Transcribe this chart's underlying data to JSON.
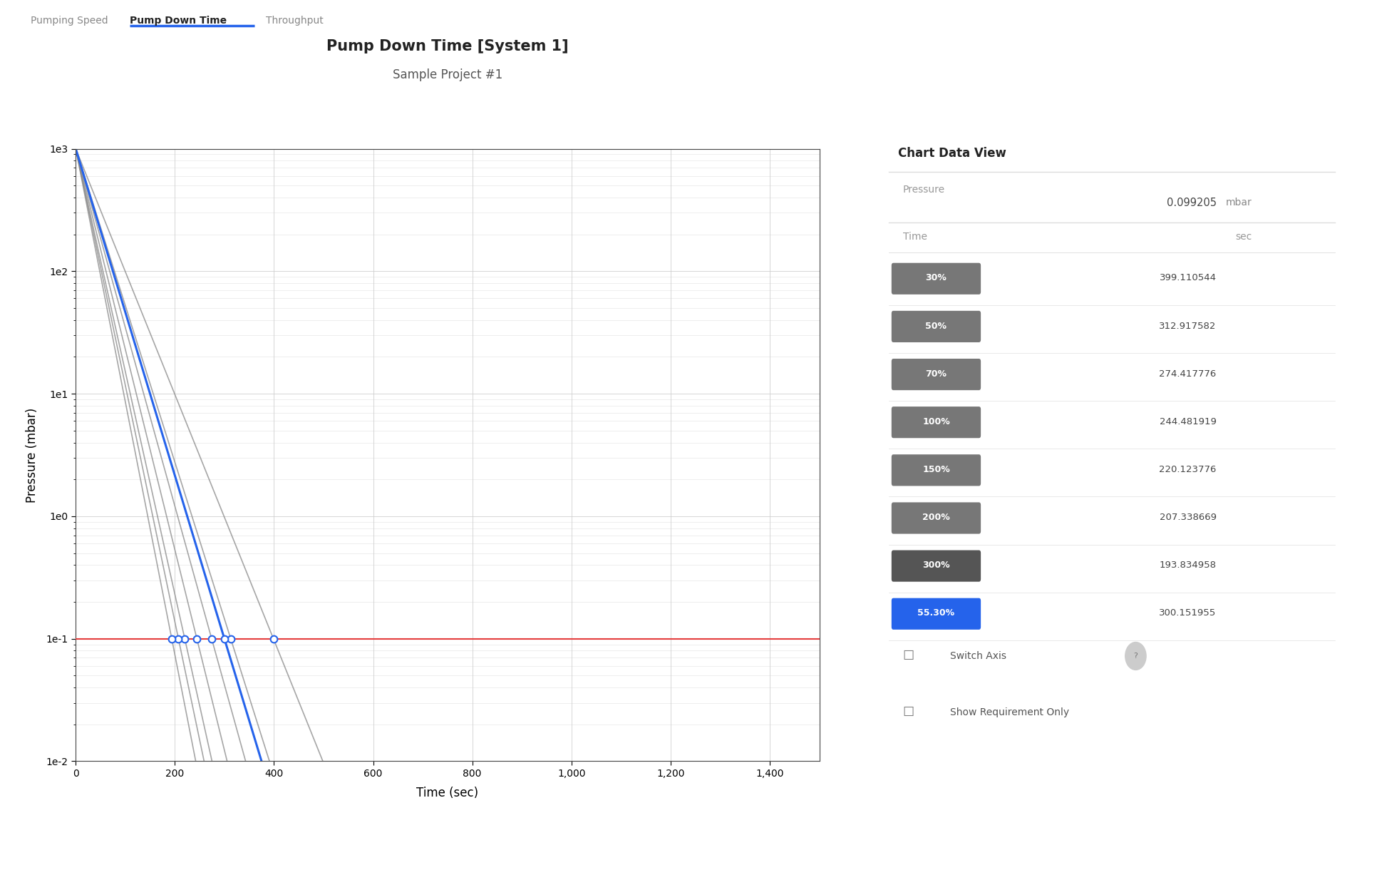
{
  "title": "Pump Down Time [System 1]",
  "subtitle": "Sample Project #1",
  "xlabel": "Time (sec)",
  "ylabel": "Pressure (mbar)",
  "xlim": [
    0,
    1500
  ],
  "ylim_log": [
    -2,
    3
  ],
  "requirement_pressure": 0.099205,
  "tab_labels": [
    "Pumping Speed",
    "Pump Down Time",
    "Throughput"
  ],
  "active_tab": 1,
  "curves": [
    {
      "label": "30%",
      "color": "#888888",
      "lw": 1.2,
      "t_final": 399.110544
    },
    {
      "label": "50%",
      "color": "#888888",
      "lw": 1.2,
      "t_final": 312.917582
    },
    {
      "label": "70%",
      "color": "#888888",
      "lw": 1.2,
      "t_final": 274.417776
    },
    {
      "label": "100%",
      "color": "#888888",
      "lw": 1.2,
      "t_final": 244.481919
    },
    {
      "label": "150%",
      "color": "#888888",
      "lw": 1.2,
      "t_final": 220.123776
    },
    {
      "label": "200%",
      "color": "#888888",
      "lw": 1.2,
      "t_final": 207.338669
    },
    {
      "label": "300%",
      "color": "#888888",
      "lw": 1.2,
      "t_final": 193.834958
    },
    {
      "label": "55.30%",
      "color": "#2563EB",
      "lw": 2.2,
      "t_final": 300.151955
    }
  ],
  "table_data": [
    {
      "label": "30%",
      "time": "399.110544",
      "bg": "#777777"
    },
    {
      "label": "50%",
      "time": "312.917582",
      "bg": "#777777"
    },
    {
      "label": "70%",
      "time": "274.417776",
      "bg": "#777777"
    },
    {
      "label": "100%",
      "time": "244.481919",
      "bg": "#777777"
    },
    {
      "label": "150%",
      "time": "220.123776",
      "bg": "#777777"
    },
    {
      "label": "200%",
      "time": "207.338669",
      "bg": "#777777"
    },
    {
      "label": "300%",
      "time": "193.834958",
      "bg": "#555555"
    },
    {
      "label": "55.30%",
      "time": "300.151955",
      "bg": "#2563EB"
    }
  ],
  "bg_color": "#ffffff",
  "plot_bg": "#ffffff",
  "grid_color": "#cccccc",
  "panel_bg": "#f3f4f6",
  "req_color": "#e53e3e",
  "xticks": [
    0,
    200,
    400,
    600,
    800,
    1000,
    1200,
    1400
  ],
  "xtick_labels": [
    "0",
    "200",
    "400",
    "600",
    "800",
    "1,000",
    "1,200",
    "1,400"
  ]
}
